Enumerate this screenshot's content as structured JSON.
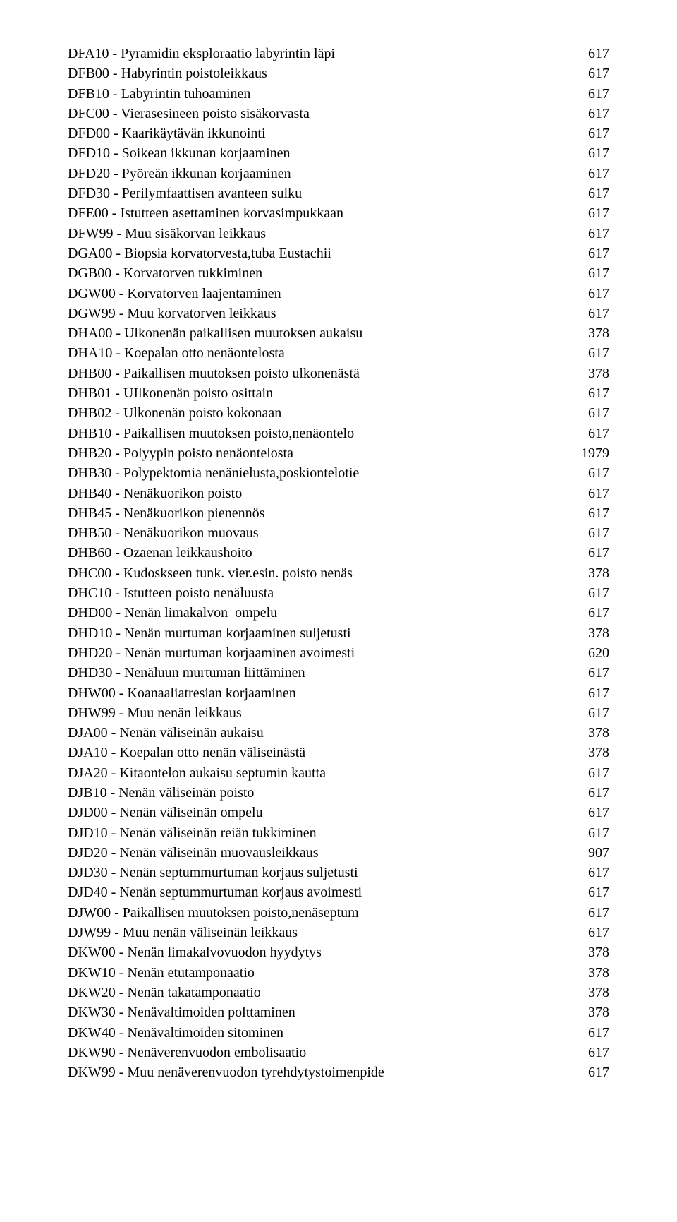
{
  "rows": [
    {
      "label": "DFA10 - Pyramidin eksploraatio labyrintin läpi",
      "value": "617"
    },
    {
      "label": "DFB00 - Habyrintin poistoleikkaus",
      "value": "617"
    },
    {
      "label": "DFB10 - Labyrintin tuhoaminen",
      "value": "617"
    },
    {
      "label": "DFC00 - Vierasesineen poisto sisäkorvasta",
      "value": "617"
    },
    {
      "label": "DFD00 - Kaarikäytävän ikkunointi",
      "value": "617"
    },
    {
      "label": "DFD10 - Soikean ikkunan korjaaminen",
      "value": "617"
    },
    {
      "label": "DFD20 - Pyöreän ikkunan korjaaminen",
      "value": "617"
    },
    {
      "label": "DFD30 - Perilymfaattisen avanteen sulku",
      "value": "617"
    },
    {
      "label": "DFE00 - Istutteen asettaminen korvasimpukkaan",
      "value": "617"
    },
    {
      "label": "DFW99 - Muu sisäkorvan leikkaus",
      "value": "617"
    },
    {
      "label": "DGA00 - Biopsia korvatorvesta,tuba Eustachii",
      "value": "617"
    },
    {
      "label": "DGB00 - Korvatorven tukkiminen",
      "value": "617"
    },
    {
      "label": "DGW00 - Korvatorven laajentaminen",
      "value": "617"
    },
    {
      "label": "DGW99 - Muu korvatorven leikkaus",
      "value": "617"
    },
    {
      "label": "DHA00 - Ulkonenän paikallisen muutoksen aukaisu",
      "value": "378"
    },
    {
      "label": "DHA10 - Koepalan otto nenäontelosta",
      "value": "617"
    },
    {
      "label": "DHB00 - Paikallisen muutoksen poisto ulkonenästä",
      "value": "378"
    },
    {
      "label": "DHB01 - UIlkonenän poisto osittain",
      "value": "617"
    },
    {
      "label": "DHB02 - Ulkonenän poisto kokonaan",
      "value": "617"
    },
    {
      "label": "DHB10 - Paikallisen muutoksen poisto,nenäontelo",
      "value": "617"
    },
    {
      "label": "DHB20 - Polyypin poisto nenäontelosta",
      "value": "1979"
    },
    {
      "label": "DHB30 - Polypektomia nenänielusta,poskiontelotie",
      "value": "617"
    },
    {
      "label": "DHB40 - Nenäkuorikon poisto",
      "value": "617"
    },
    {
      "label": "DHB45 - Nenäkuorikon pienennös",
      "value": "617"
    },
    {
      "label": "DHB50 - Nenäkuorikon muovaus",
      "value": "617"
    },
    {
      "label": "DHB60 - Ozaenan leikkaushoito",
      "value": "617"
    },
    {
      "label": "DHC00 - Kudoskseen tunk. vier.esin. poisto nenäs",
      "value": "378"
    },
    {
      "label": "DHC10 - Istutteen poisto nenäluusta",
      "value": "617"
    },
    {
      "label": "DHD00 - Nenän limakalvon  ompelu",
      "value": "617"
    },
    {
      "label": "DHD10 - Nenän murtuman korjaaminen suljetusti",
      "value": "378"
    },
    {
      "label": "DHD20 - Nenän murtuman korjaaminen avoimesti",
      "value": "620"
    },
    {
      "label": "DHD30 - Nenäluun murtuman liittäminen",
      "value": "617"
    },
    {
      "label": "DHW00 - Koanaaliatresian korjaaminen",
      "value": "617"
    },
    {
      "label": "DHW99 - Muu nenän leikkaus",
      "value": "617"
    },
    {
      "label": "DJA00 - Nenän väliseinän aukaisu",
      "value": "378"
    },
    {
      "label": "DJA10 - Koepalan otto nenän väliseinästä",
      "value": "378"
    },
    {
      "label": "DJA20 - Kitaontelon aukaisu septumin kautta",
      "value": "617"
    },
    {
      "label": "DJB10 - Nenän väliseinän poisto",
      "value": "617"
    },
    {
      "label": "DJD00 - Nenän väliseinän ompelu",
      "value": "617"
    },
    {
      "label": "DJD10 - Nenän väliseinän reiän tukkiminen",
      "value": "617"
    },
    {
      "label": "DJD20 - Nenän väliseinän muovausleikkaus",
      "value": "907"
    },
    {
      "label": "DJD30 - Nenän septummurtuman korjaus suljetusti",
      "value": "617"
    },
    {
      "label": "DJD40 - Nenän septummurtuman korjaus avoimesti",
      "value": "617"
    },
    {
      "label": "DJW00 - Paikallisen muutoksen poisto,nenäseptum",
      "value": "617"
    },
    {
      "label": "DJW99 - Muu nenän väliseinän leikkaus",
      "value": "617"
    },
    {
      "label": "DKW00 - Nenän limakalvovuodon hyydytys",
      "value": "378"
    },
    {
      "label": "DKW10 - Nenän etutamponaatio",
      "value": "378"
    },
    {
      "label": "DKW20 - Nenän takatamponaatio",
      "value": "378"
    },
    {
      "label": "DKW30 - Nenävaltimoiden polttaminen",
      "value": "378"
    },
    {
      "label": "DKW40 - Nenävaltimoiden sitominen",
      "value": "617"
    },
    {
      "label": "DKW90 - Nenäverenvuodon embolisaatio",
      "value": "617"
    },
    {
      "label": "DKW99 - Muu nenäverenvuodon tyrehdytystoimenpide",
      "value": "617"
    }
  ]
}
